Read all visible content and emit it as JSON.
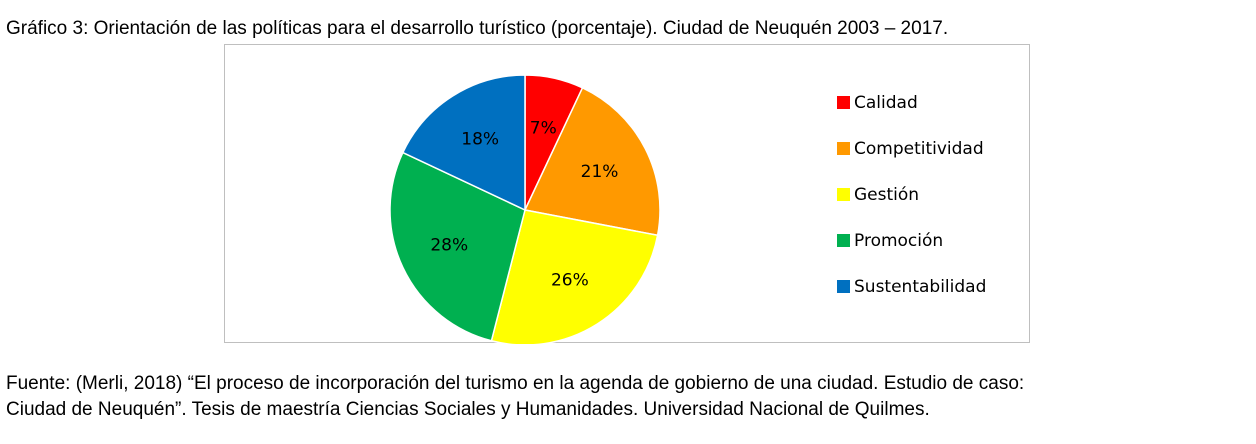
{
  "title": "Gráfico 3: Orientación de las políticas para el desarrollo turístico (porcentaje). Ciudad de Neuquén 2003 – 2017.",
  "source": {
    "line1": "Fuente: (Merli, 2018) “El proceso de incorporación del turismo en la agenda de gobierno de una ciudad. Estudio de caso:",
    "line2": "Ciudad de Neuquén”. Tesis de maestría Ciencias Sociales y Humanidades. Universidad Nacional de Quilmes."
  },
  "chart_data": {
    "type": "pie",
    "legend_position": "right",
    "slices": [
      {
        "label": "Calidad",
        "value": 7,
        "display": "7%",
        "color": "#ff0000"
      },
      {
        "label": "Competitividad",
        "value": 21,
        "display": "21%",
        "color": "#ff9900"
      },
      {
        "label": "Gestión",
        "value": 26,
        "display": "26%",
        "color": "#ffff00"
      },
      {
        "label": "Promoción",
        "value": 28,
        "display": "28%",
        "color": "#00b050"
      },
      {
        "label": "Sustentabilidad",
        "value": 18,
        "display": "18%",
        "color": "#0070c0"
      }
    ]
  }
}
